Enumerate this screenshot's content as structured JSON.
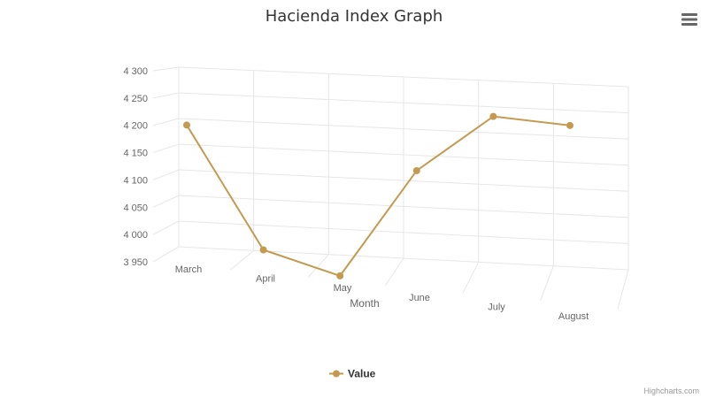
{
  "chart_data": {
    "type": "line",
    "title": "Hacienda Index Graph",
    "xlabel": "Month",
    "ylabel": "",
    "categories": [
      "March",
      "April",
      "May",
      "June",
      "July",
      "August"
    ],
    "series": [
      {
        "name": "Value",
        "values": [
          4200,
          3970,
          3928,
          4135,
          4245,
          4235
        ]
      }
    ],
    "ylim": [
      3950,
      4300
    ],
    "yticks": [
      3950,
      4000,
      4050,
      4100,
      4150,
      4200,
      4250,
      4300
    ],
    "ytick_labels": [
      "3 950",
      "4 000",
      "4 050",
      "4 100",
      "4 150",
      "4 200",
      "4 250",
      "4 300"
    ],
    "grid": true,
    "legend": "bottom-center",
    "three_d": true,
    "colors": {
      "series": "#c49a50",
      "grid": "#e6e6e6",
      "text": "#666666"
    }
  },
  "menu": {
    "icon": "hamburger-menu-icon"
  },
  "credits": "Highcharts.com"
}
